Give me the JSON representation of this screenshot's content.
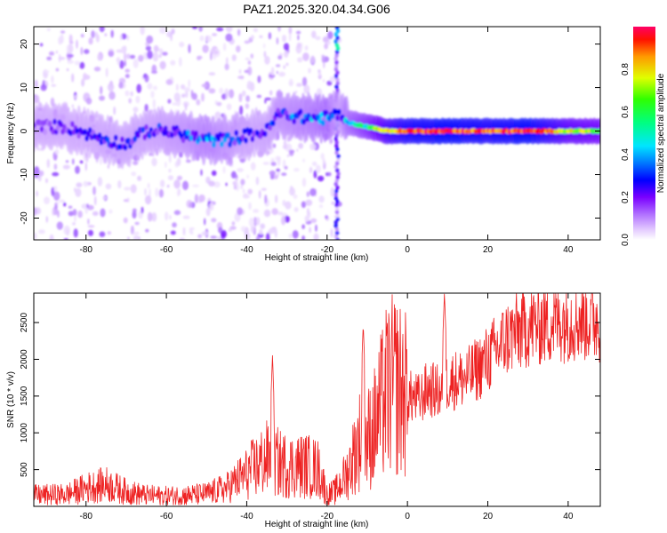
{
  "title": "PAZ1.2025.320.04.34.G06",
  "colors": {
    "snr_line": "#ee2222",
    "axis": "#000000",
    "colormap": [
      "#ffffff",
      "#d9b8ff",
      "#a060ff",
      "#6a00ff",
      "#0000ff",
      "#00a0ff",
      "#00e5ff",
      "#00ff66",
      "#66ff00",
      "#ffff00",
      "#ff9900",
      "#ff0000",
      "#ff0066"
    ]
  },
  "chart_data": [
    {
      "type": "heatmap",
      "title": "PAZ1.2025.320.04.34.G06",
      "xlabel": "Height of straight line (km)",
      "ylabel": "Frequency (Hz)",
      "xlim": [
        -93,
        48
      ],
      "ylim": [
        -25,
        24
      ],
      "xticks": [
        -80,
        -60,
        -40,
        -20,
        0,
        20,
        40
      ],
      "yticks": [
        -20,
        -10,
        0,
        10,
        20
      ],
      "colorbar": {
        "label": "Normalized spectral amplitude",
        "range": [
          0,
          1
        ],
        "ticks": [
          "0.0",
          "0.2",
          "0.4",
          "0.6",
          "0.8"
        ]
      },
      "ridge": {
        "x": [
          -93,
          -85,
          -75,
          -70,
          -65,
          -60,
          -55,
          -50,
          -45,
          -40,
          -35,
          -32,
          -25,
          -20,
          -17,
          -15,
          -10,
          -5,
          0,
          10,
          20,
          30,
          40,
          48
        ],
        "freq": [
          1,
          1,
          -2,
          -3,
          0,
          0,
          -1,
          -2,
          -2,
          -1,
          0,
          4,
          3,
          3,
          4,
          2,
          1,
          0,
          0,
          0,
          0,
          0,
          0,
          0
        ],
        "amplitude": [
          0.2,
          0.25,
          0.3,
          0.3,
          0.3,
          0.32,
          0.35,
          0.4,
          0.35,
          0.3,
          0.3,
          0.35,
          0.4,
          0.45,
          0.3,
          0.45,
          0.6,
          0.8,
          0.9,
          0.95,
          0.9,
          0.95,
          0.75,
          0.7
        ]
      },
      "noise_region_x": [
        -93,
        -17
      ],
      "spike_x": -17.5
    },
    {
      "type": "line",
      "xlabel": "Height of straight line (km)",
      "ylabel": "SNR (10 * v/v)",
      "xlim": [
        -93,
        48
      ],
      "ylim": [
        0,
        2900
      ],
      "xticks": [
        -80,
        -60,
        -40,
        -20,
        0,
        20,
        40
      ],
      "yticks": [
        500,
        1000,
        1500,
        2000,
        2500
      ],
      "series": [
        {
          "name": "SNR",
          "x": [
            -93,
            -85,
            -80,
            -75,
            -70,
            -65,
            -60,
            -55,
            -50,
            -45,
            -40,
            -35,
            -30,
            -25,
            -22,
            -20,
            -18,
            -15,
            -12,
            -10,
            -8,
            -5,
            -3,
            0,
            3,
            5,
            8,
            10,
            15,
            20,
            25,
            30,
            35,
            40,
            45,
            48
          ],
          "y": [
            150,
            160,
            250,
            300,
            200,
            150,
            140,
            150,
            170,
            250,
            450,
            650,
            550,
            550,
            500,
            150,
            200,
            450,
            900,
            900,
            1100,
            1600,
            1650,
            1500,
            1450,
            1600,
            1550,
            1700,
            1750,
            2000,
            2300,
            2450,
            2500,
            2550,
            2550,
            2550
          ]
        }
      ],
      "spikes": [
        {
          "x": -33.6,
          "y": 2050
        },
        {
          "x": -11,
          "y": 2480
        },
        {
          "x": 9.2,
          "y": 2900
        }
      ]
    }
  ]
}
